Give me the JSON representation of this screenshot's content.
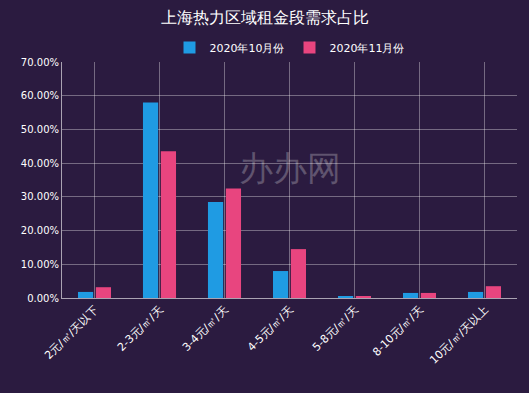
{
  "chart_data": {
    "type": "bar",
    "title": "上海热力区域租金段需求占比",
    "categories": [
      "2元/㎡/天以下",
      "2-3元/㎡/天",
      "3-4元/㎡/天",
      "4-5元/㎡/天",
      "5-8元/㎡/天",
      "8-10元/㎡/天",
      "10元/㎡/天以上"
    ],
    "series": [
      {
        "name": "2020年10月份",
        "color": "#1f9be3",
        "values": [
          1.8,
          58,
          28.5,
          8,
          0.3,
          1.5,
          1.8
        ]
      },
      {
        "name": "2020年11月份",
        "color": "#e8457f",
        "values": [
          3.2,
          43.5,
          32.5,
          14.5,
          0.3,
          1.5,
          3.5
        ]
      }
    ],
    "ylim": [
      0,
      70
    ],
    "yticks": [
      {
        "value": 0,
        "label": "0.00%"
      },
      {
        "value": 10,
        "label": "10.00%"
      },
      {
        "value": 20,
        "label": "20.00%"
      },
      {
        "value": 30,
        "label": "30.00%"
      },
      {
        "value": 40,
        "label": "40.00%"
      },
      {
        "value": 50,
        "label": "50.00%"
      },
      {
        "value": 60,
        "label": "60.00%"
      },
      {
        "value": 70,
        "label": "70.00%"
      }
    ],
    "grid": true,
    "legend": "top",
    "annotations": [
      "办办网"
    ]
  }
}
